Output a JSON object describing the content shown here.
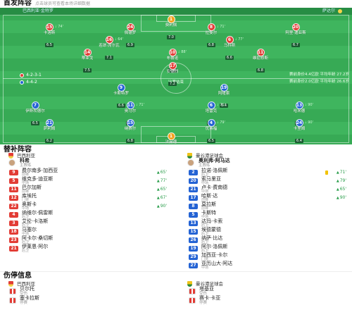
{
  "header": {
    "title": "首发阵容",
    "hint": "点击球员可查看本场详细数据"
  },
  "teams": {
    "home": "巴西利亚",
    "away": "曼谷港足球会"
  },
  "colors": {
    "home": "#e23c35",
    "away": "#2463d4",
    "goalkeeper": "#f5a21e",
    "event_green": "#2a9d4b",
    "yellow_card": "#f2c200",
    "home_badge": "#e23c35",
    "away_badge": "#f0c419"
  },
  "pitch": {
    "home_label": "巴西利亚·金特罗",
    "away_label": "萨达尔",
    "status": "比赛结束",
    "home_formation": "4-2-3-1",
    "away_formation": "4-4-2",
    "home_info": "赛前身价4.4亿欧 平均年龄 27.2岁",
    "away_info": "赛前身价2.0亿欧 平均年龄 26.6岁",
    "home_players": [
      {
        "number": "1",
        "name": "费利佩",
        "rating": "7.0",
        "goalkeeper": true
      },
      {
        "number": "15",
        "name": "卡洛斯",
        "rating": "6.5",
        "event": "74'"
      },
      {
        "number": "24",
        "name": "佩德罗",
        "rating": "6.9"
      },
      {
        "number": "8",
        "name": "拉斐尔",
        "rating": "6.8",
        "event": "71'"
      },
      {
        "number": "20",
        "name": "阿里·迪亚斯",
        "rating": "6.7"
      },
      {
        "number": "16",
        "name": "若昂·席尔瓦",
        "rating": "7.1",
        "event": "64'"
      },
      {
        "number": "6",
        "name": "马科斯",
        "rating": "6.6",
        "event": "77'"
      },
      {
        "number": "14",
        "name": "蒂亚戈",
        "rating": "7.5"
      },
      {
        "number": "10",
        "name": "布鲁诺",
        "rating": "7.8",
        "event": "88'"
      },
      {
        "number": "11",
        "name": "维尼修斯",
        "rating": "6.8"
      },
      {
        "number": "17",
        "name": "安德烈",
        "rating": "7.2"
      }
    ],
    "away_players": [
      {
        "number": "9",
        "name": "卡斯特罗",
        "rating": "6.6"
      },
      {
        "number": "19",
        "name": "阿隆索",
        "rating": "6.4"
      },
      {
        "number": "7",
        "name": "伊斯坎德尔",
        "rating": "6.5"
      },
      {
        "number": "11",
        "name": "奥马尔",
        "rating": "6.9",
        "event": "71'"
      },
      {
        "number": "6",
        "name": "塔雷克",
        "rating": "6.7",
        "event": "71'"
      },
      {
        "number": "13",
        "name": "哈米德",
        "rating": "6.3",
        "event": "90'"
      },
      {
        "number": "21",
        "name": "萨利姆",
        "rating": "6.2"
      },
      {
        "number": "15",
        "name": "纳赛尔",
        "rating": "6.8"
      },
      {
        "number": "4",
        "name": "优素福",
        "rating": "6.5",
        "event": "79'"
      },
      {
        "number": "24",
        "name": "卡里姆",
        "rating": "6.4",
        "event": "90'"
      },
      {
        "number": "1",
        "name": "法赫德",
        "goalkeeper": true
      }
    ]
  },
  "subs": {
    "title": "替补阵容",
    "home": {
      "coach": "科希",
      "coach_role": "主教练",
      "players": [
        {
          "number": "9",
          "name": "费尔南多·加西亚",
          "position": "前锋",
          "event": "65'"
        },
        {
          "number": "5",
          "name": "维克多·迪亚斯",
          "position": "中场",
          "event": "77'"
        },
        {
          "number": "11",
          "name": "巴尔加斯",
          "position": "前锋",
          "event": "65'"
        },
        {
          "number": "12",
          "name": "库埃托",
          "position": "门将",
          "event": "67'"
        },
        {
          "number": "22",
          "name": "奥斯卡",
          "position": "中场",
          "event": "90'"
        },
        {
          "number": "4",
          "name": "纳维尔·佩雷斯",
          "position": "后卫"
        },
        {
          "number": "3",
          "name": "艾伦·卡洛斯",
          "position": "后卫"
        },
        {
          "number": "18",
          "name": "马塞尔",
          "position": "中场"
        },
        {
          "number": "23",
          "name": "阿卡尔·桑切斯",
          "position": "后卫"
        },
        {
          "number": "21",
          "name": "伊莱恩·阿尔",
          "position": "后卫"
        }
      ]
    },
    "away": {
      "coach": "奥利弗·阿马达",
      "coach_role": "主教练",
      "players": [
        {
          "number": "2",
          "name": "拉诺·洛佩斯",
          "position": "后卫",
          "event": "71'",
          "card": "yellow"
        },
        {
          "number": "20",
          "name": "索马里亚",
          "position": "中场",
          "event": "79'"
        },
        {
          "number": "21",
          "name": "卢卡·费南德",
          "position": "中场",
          "event": "65'"
        },
        {
          "number": "17",
          "name": "哈斯·达",
          "position": "前锋",
          "event": "90'"
        },
        {
          "number": "8",
          "name": "莫拉斯",
          "position": "前锋"
        },
        {
          "number": "5",
          "name": "卡斯特",
          "position": "中场"
        },
        {
          "number": "13",
          "name": "达玛·卡索",
          "position": "后卫"
        },
        {
          "number": "15",
          "name": "埃德蒙德",
          "position": "后卫"
        },
        {
          "number": "26",
          "name": "纳萨·比达",
          "position": "后卫"
        },
        {
          "number": "19",
          "name": "阿尔·洛佩斯",
          "position": "后卫"
        },
        {
          "number": "29",
          "name": "加西亚·卡尔",
          "position": "门将"
        },
        {
          "number": "27",
          "name": "亚历山大·阿达",
          "position": "中场"
        }
      ]
    }
  },
  "injuries": {
    "title": "伤停信息",
    "home": {
      "players": [
        {
          "name": "贝尔托",
          "status": "受伤"
        },
        {
          "name": "塞卡拉斯",
          "status": "停赛"
        }
      ]
    },
    "away": {
      "players": [
        {
          "name": "塔基亚",
          "status": "受伤"
        },
        {
          "name": "赛卡·卡亚",
          "status": "停赛"
        }
      ]
    }
  }
}
